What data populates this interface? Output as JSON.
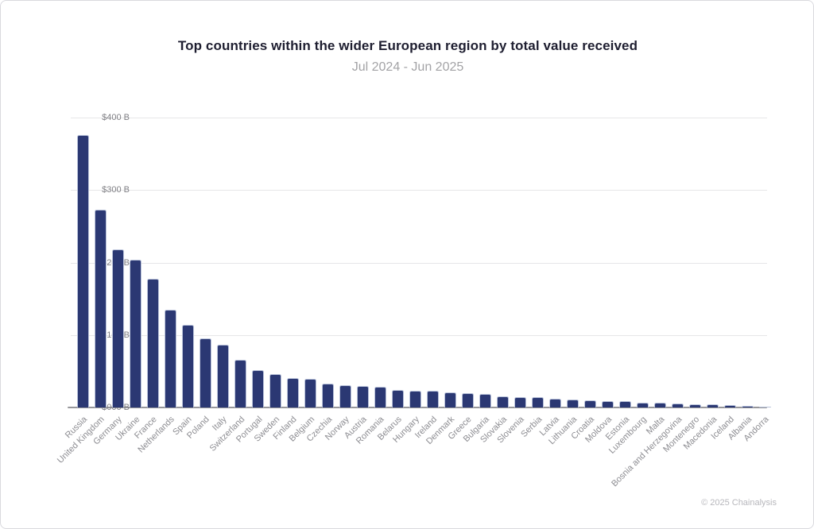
{
  "page": {
    "footer": "© 2025 Chainalysis"
  },
  "chart_data": {
    "type": "bar",
    "title": "Top countries within the wider European region by total value received",
    "subtitle": "Jul 2024 - Jun 2025",
    "unit": "USD billions",
    "categories": [
      "Russia",
      "United Kingdom",
      "Germany",
      "Ukraine",
      "France",
      "Netherlands",
      "Spain",
      "Poland",
      "Italy",
      "Switzerland",
      "Portugal",
      "Sweden",
      "Finland",
      "Belgium",
      "Czechia",
      "Norway",
      "Austria",
      "Romania",
      "Belarus",
      "Hungary",
      "Ireland",
      "Denmark",
      "Greece",
      "Bulgaria",
      "Slovakia",
      "Slovenia",
      "Serbia",
      "Latvia",
      "Lithuania",
      "Croatia",
      "Moldova",
      "Estonia",
      "Luxembourg",
      "Malta",
      "Bosnia and Herzegovina",
      "Montenegro",
      "Macedonia",
      "Iceland",
      "Albania",
      "Andorra"
    ],
    "values": [
      376,
      273,
      218,
      204,
      178,
      135,
      114,
      95,
      87,
      66,
      52,
      46,
      41,
      40,
      33,
      31,
      30,
      29,
      24,
      23,
      23,
      21,
      20,
      19,
      15,
      14,
      14,
      12,
      11,
      10,
      9,
      9,
      7,
      7,
      5,
      4,
      4,
      3,
      2,
      1
    ],
    "y_ticks": [
      {
        "label": "$400 B",
        "value": 400
      },
      {
        "label": "$300 B",
        "value": 300
      },
      {
        "label": "$200 B",
        "value": 200
      },
      {
        "label": "$100 B",
        "value": 100
      },
      {
        "label": "$000 B",
        "value": 0
      }
    ],
    "ylim": [
      0,
      400
    ],
    "xlabel": "",
    "ylabel": "",
    "grid": true,
    "legend": "none",
    "bar_color": "#2b3873",
    "bar_stroke": "#b9c2da",
    "grid_color": "#e6e6e8",
    "axis_color": "#97979b",
    "title_color": "#1e1e30",
    "subtitle_color": "#a3a3a6",
    "tick_color": "#7f7f84"
  }
}
